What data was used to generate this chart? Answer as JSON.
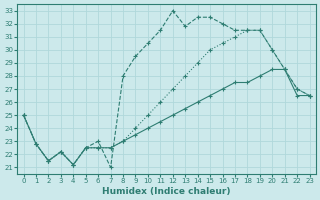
{
  "xlabel": "Humidex (Indice chaleur)",
  "bg_color": "#cce9eb",
  "grid_color": "#b0d8db",
  "line_color": "#2e7d72",
  "xlim": [
    -0.5,
    23.5
  ],
  "ylim": [
    20.5,
    33.5
  ],
  "xticks": [
    0,
    1,
    2,
    3,
    4,
    5,
    6,
    7,
    8,
    9,
    10,
    11,
    12,
    13,
    14,
    15,
    16,
    17,
    18,
    19,
    20,
    21,
    22,
    23
  ],
  "yticks": [
    21,
    22,
    23,
    24,
    25,
    26,
    27,
    28,
    29,
    30,
    31,
    32,
    33
  ],
  "series": [
    {
      "x": [
        0,
        1,
        2,
        3,
        4,
        5,
        6,
        7,
        8,
        9,
        10,
        11,
        12,
        13,
        14,
        15,
        16,
        17,
        18,
        19,
        20,
        21,
        22,
        23
      ],
      "y": [
        25,
        22.8,
        21.5,
        22.2,
        21.2,
        22.5,
        22.5,
        22.5,
        23.0,
        23.5,
        24.0,
        24.5,
        25.0,
        25.5,
        26.0,
        26.5,
        27.0,
        27.5,
        27.5,
        28.0,
        28.5,
        28.5,
        26.5,
        26.5
      ]
    },
    {
      "x": [
        0,
        1,
        2,
        3,
        4,
        5,
        6,
        7,
        8,
        9,
        10,
        11,
        12,
        13,
        14,
        15,
        16,
        17,
        18,
        19,
        20,
        21,
        22,
        23
      ],
      "y": [
        25,
        22.8,
        21.5,
        22.2,
        21.2,
        22.5,
        23.0,
        21.0,
        28.0,
        29.5,
        30.5,
        31.5,
        33.0,
        31.8,
        32.5,
        32.5,
        32.0,
        31.5,
        31.5,
        31.5,
        30.0,
        28.5,
        27.0,
        26.5
      ]
    },
    {
      "x": [
        0,
        1,
        2,
        3,
        4,
        5,
        6,
        7,
        8,
        9,
        10,
        11,
        12,
        13,
        14,
        15,
        16,
        17,
        18,
        19,
        20,
        21,
        22,
        23
      ],
      "y": [
        25,
        22.8,
        21.5,
        22.2,
        21.2,
        22.5,
        22.5,
        22.5,
        23.0,
        24.0,
        25.0,
        26.0,
        27.0,
        28.0,
        29.0,
        30.0,
        30.5,
        31.0,
        31.5,
        31.5,
        30.0,
        28.5,
        27.0,
        26.5
      ]
    }
  ]
}
